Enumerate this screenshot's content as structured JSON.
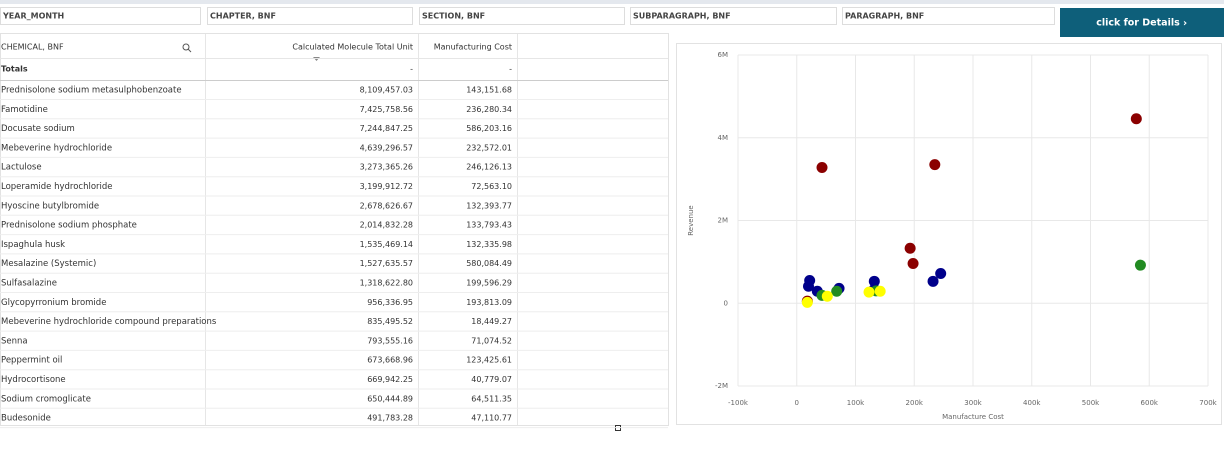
{
  "filters": [
    "YEAR_MONTH",
    "CHAPTER, BNF",
    "SECTION, BNF",
    "SUBPARAGRAPH, BNF",
    "PARAGRAPH, BNF"
  ],
  "button": "click for Details",
  "table": {
    "columns": [
      "CHEMICAL, BNF",
      "Calculated Molecule Total Unit",
      "Manufacturing Cost"
    ],
    "totals": [
      "Totals",
      "-",
      "-"
    ],
    "rows": [
      [
        "Prednisolone sodium metasulphobenzoate",
        "8,109,457.03",
        "143,151.68"
      ],
      [
        "Famotidine",
        "7,425,758.56",
        "236,280.34"
      ],
      [
        "Docusate sodium",
        "7,244,847.25",
        "586,203.16"
      ],
      [
        "Mebeverine hydrochloride",
        "4,639,296.57",
        "232,572.01"
      ],
      [
        "Lactulose",
        "3,273,365.26",
        "246,126.13"
      ],
      [
        "Loperamide hydrochloride",
        "3,199,912.72",
        "72,563.10"
      ],
      [
        "Hyoscine butylbromide",
        "2,678,626.67",
        "132,393.77"
      ],
      [
        "Prednisolone sodium phosphate",
        "2,014,832.28",
        "133,793.43"
      ],
      [
        "Ispaghula husk",
        "1,535,469.14",
        "132,335.98"
      ],
      [
        "Mesalazine (Systemic)",
        "1,527,635.57",
        "580,084.49"
      ],
      [
        "Sulfasalazine",
        "1,318,622.80",
        "199,596.29"
      ],
      [
        "Glycopyrronium bromide",
        "956,336.95",
        "193,813.09"
      ],
      [
        "Mebeverine hydrochloride compound preparations",
        "835,495.52",
        "18,449.27"
      ],
      [
        "Senna",
        "793,555.16",
        "71,074.52"
      ],
      [
        "Peppermint oil",
        "673,668.96",
        "123,425.61"
      ],
      [
        "Hydrocortisone",
        "669,942.25",
        "40,779.07"
      ],
      [
        "Sodium cromoglicate",
        "650,444.89",
        "64,511.35"
      ],
      [
        "Budesonide",
        "491,783.28",
        "47,110.77"
      ]
    ]
  },
  "chart_data": {
    "type": "scatter",
    "x_label": "Manufacture Cost",
    "y_label": "Revenue",
    "xlim": [
      -100000,
      700000
    ],
    "xticks": [
      {
        "value": -100000,
        "label": "-100k"
      },
      0,
      {
        "value": 100000,
        "label": "100k"
      },
      {
        "value": 200000,
        "label": "200k"
      },
      {
        "value": 300000,
        "label": "300k"
      },
      {
        "value": 400000,
        "label": "400k"
      },
      {
        "value": 500000,
        "label": "500k"
      },
      {
        "value": 600000,
        "label": "600k"
      },
      {
        "value": 700000,
        "label": "700k"
      }
    ],
    "ylim": [
      -2000000,
      6000000
    ],
    "yticks": [
      {
        "value": -2000000,
        "label": "-2M"
      },
      0,
      {
        "value": 2000000,
        "label": "2M"
      },
      {
        "value": 4000000,
        "label": "4M"
      },
      {
        "value": 6000000,
        "label": "6M"
      }
    ],
    "grid": true,
    "series": [
      {
        "color": "#8b0000",
        "x": [
          578000,
          43000,
          235000,
          193000,
          198000,
          18000
        ],
        "values": [
          4460000,
          3280000,
          3350000,
          1330000,
          960000,
          50000
        ]
      },
      {
        "color": "#00008b",
        "x": [
          22000,
          20000,
          35000,
          72000,
          132000,
          132000,
          232000,
          245000
        ],
        "values": [
          550000,
          410000,
          290000,
          360000,
          530000,
          340000,
          530000,
          720000
        ]
      },
      {
        "color": "#228b22",
        "x": [
          585000,
          68000,
          43000,
          135000
        ],
        "values": [
          920000,
          290000,
          190000,
          300000
        ]
      },
      {
        "color": "#ffff00",
        "x": [
          18000,
          52000,
          123000,
          142000
        ],
        "values": [
          20000,
          170000,
          270000,
          290000
        ]
      }
    ]
  }
}
